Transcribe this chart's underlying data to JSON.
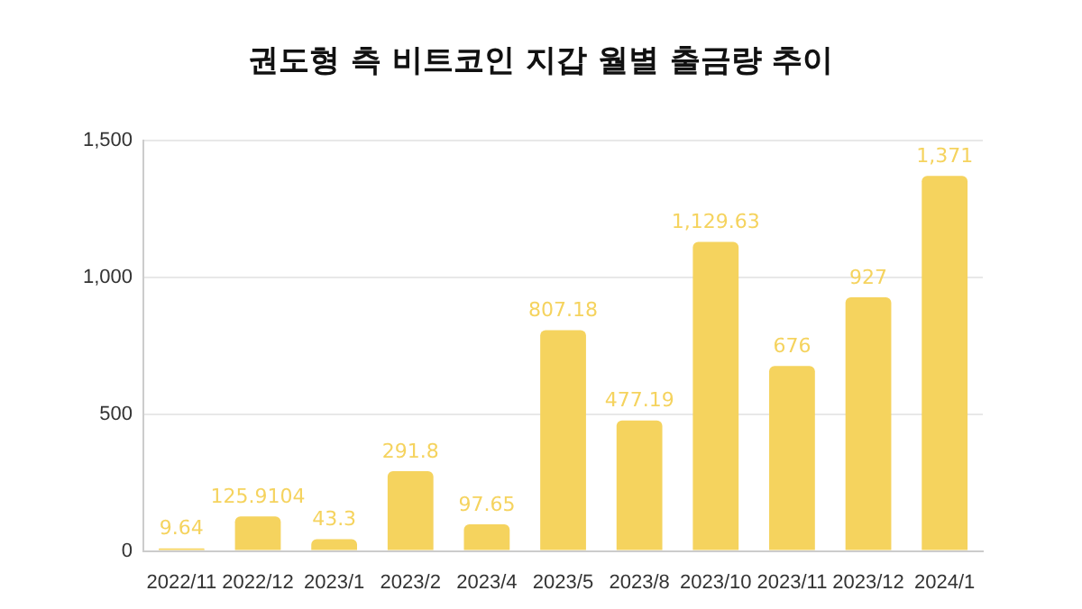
{
  "chart_data": {
    "type": "bar",
    "title": "권도형 측 비트코인 지갑 월별 출금량 추이",
    "categories": [
      "2022/11",
      "2022/12",
      "2023/1",
      "2023/2",
      "2023/4",
      "2023/5",
      "2023/8",
      "2023/10",
      "2023/11",
      "2023/12",
      "2024/1"
    ],
    "values": [
      9.64,
      125.9104,
      43.3,
      291.8,
      97.65,
      807.18,
      477.19,
      1129.63,
      676,
      927,
      1371
    ],
    "color": "#f5d35e",
    "ylim": [
      0,
      1500
    ],
    "yticks": [
      0,
      {
        "value": 500,
        "label": "500"
      },
      {
        "value": 1000,
        "label": "1,000"
      },
      {
        "value": 1500,
        "label": "1,500"
      }
    ],
    "value_labels": [
      "9.64",
      "125.9104",
      "43.3",
      "291.8",
      "97.65",
      "807.18",
      "477.19",
      "1,129.63",
      "676",
      "927",
      "1,371"
    ],
    "grid": "y",
    "legend": false
  }
}
